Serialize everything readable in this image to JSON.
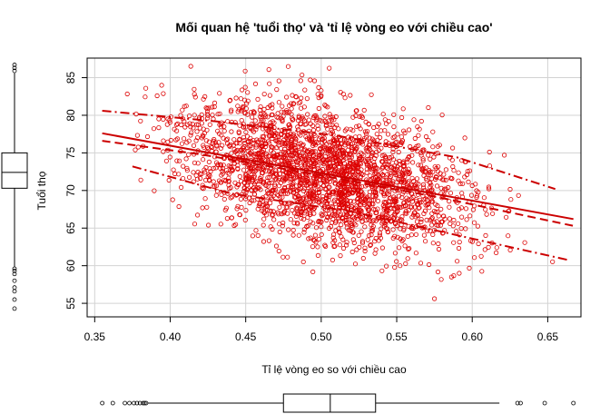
{
  "chart_data": {
    "type": "scatter",
    "title": "Mối quan hệ 'tuổi thọ' và 'tỉ lệ vòng eo với chiều cao'",
    "xlabel": "Tỉ lệ vòng eo so với chiều cao",
    "ylabel": "Tuổi thọ",
    "xlim": [
      0.345,
      0.672
    ],
    "ylim": [
      53.2,
      87.6
    ],
    "xticks": [
      "0.35",
      "0.40",
      "0.45",
      "0.50",
      "0.55",
      "0.60",
      "0.65"
    ],
    "yticks": [
      "55",
      "60",
      "65",
      "70",
      "75",
      "80",
      "85"
    ],
    "grid": true,
    "point_color": "#dd0000",
    "line_color": "#cc0000",
    "n_points": 2600,
    "x_center": 0.505,
    "x_sd": 0.047,
    "regression_line": {
      "x": [
        0.355,
        0.667
      ],
      "y": [
        77.6,
        66.2
      ]
    },
    "smooth_curve": {
      "x": [
        0.355,
        0.42,
        0.5,
        0.58,
        0.667
      ],
      "y": [
        76.6,
        74.8,
        72.0,
        69.0,
        65.3
      ]
    },
    "spread_upper": {
      "x": [
        0.355,
        0.43,
        0.51,
        0.59,
        0.655
      ],
      "y": [
        80.6,
        79.2,
        77.3,
        74.4,
        70.2
      ]
    },
    "spread_lower": {
      "x": [
        0.375,
        0.44,
        0.52,
        0.6,
        0.665
      ],
      "y": [
        73.2,
        69.6,
        67.2,
        63.6,
        60.7
      ]
    },
    "x_boxplot": {
      "whisker_low": 0.385,
      "q1": 0.475,
      "median": 0.506,
      "q3": 0.536,
      "whisker_high": 0.618,
      "outliers": [
        0.355,
        0.362,
        0.37,
        0.373,
        0.376,
        0.378,
        0.38,
        0.382,
        0.383,
        0.384,
        0.63,
        0.632,
        0.648,
        0.667
      ]
    },
    "y_boxplot": {
      "whisker_low": 59.8,
      "q1": 70.3,
      "median": 72.4,
      "q3": 75.0,
      "whisker_high": 85.6,
      "outliers": [
        54.3,
        55.5,
        56.6,
        57.1,
        58.0,
        58.9,
        59.3,
        59.6,
        85.9,
        86.3,
        86.7
      ]
    }
  }
}
